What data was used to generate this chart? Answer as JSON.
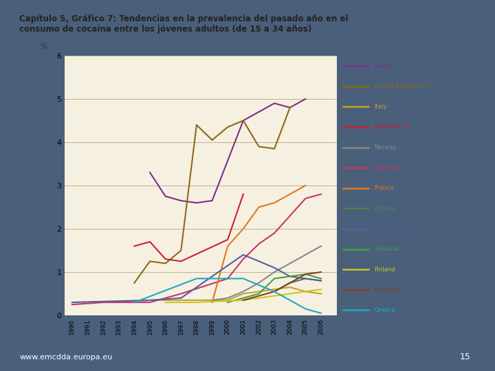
{
  "title": "Capítulo 5, Gráfico 7: Tendencias en la prevalencia del pasado año en el\nconsumo de cocaína entre los jóvenes adultos (de 15 a 34 años)",
  "bg_color": "#f5f0e0",
  "outer_bg": "#4a5f7a",
  "ylabel": "%",
  "ylim": [
    0,
    6
  ],
  "yticks": [
    0,
    1,
    2,
    3,
    4,
    5,
    6
  ],
  "footer_text": "www.emcdda.europa.eu",
  "footer_num": "15",
  "series": [
    {
      "label": "Spain",
      "color": "#7b2d8b",
      "data": {
        "1995": 3.3,
        "1996": 2.75,
        "1997": 2.65,
        "1998": 2.6,
        "1999": 2.65,
        "2001": 4.5,
        "2003": 4.9,
        "2004": 4.8,
        "2005": 5.0
      }
    },
    {
      "label": "United Kingdom (¹)",
      "color": "#8b6914",
      "data": {
        "1994": 0.75,
        "1995": 1.25,
        "1996": 1.2,
        "1997": 1.5,
        "1998": 4.4,
        "1999": 4.05,
        "2000": 4.35,
        "2001": 4.5,
        "2002": 3.9,
        "2003": 3.85,
        "2004": 4.8
      }
    },
    {
      "label": "Italy",
      "color": "#c8a030",
      "data": {
        "1992": 0.3,
        "1995": 0.35,
        "2000": 0.35,
        "2001": 0.5,
        "2002": 0.55,
        "2003": 0.6,
        "2004": 0.65,
        "2005": 0.55,
        "2006": 0.5
      }
    },
    {
      "label": "Denmark (²)",
      "color": "#cc2030",
      "data": {
        "1994": 1.6,
        "1995": 1.7,
        "1996": 1.3,
        "1997": 1.25,
        "2000": 1.75,
        "2001": 2.8
      }
    },
    {
      "label": "Norway",
      "color": "#888888",
      "data": {
        "1999": 0.35,
        "2000": 0.4,
        "2001": 0.55,
        "2002": 0.75,
        "2003": 1.0,
        "2004": 1.2,
        "2005": 1.4,
        "2006": 1.6
      }
    },
    {
      "label": "Germany",
      "color": "#cc3366",
      "data": {
        "1990": 0.25,
        "1992": 0.3,
        "1995": 0.3,
        "1997": 0.5,
        "2000": 0.85,
        "2001": 1.3,
        "2002": 1.65,
        "2003": 1.9,
        "2004": 2.3,
        "2005": 2.7,
        "2006": 2.8
      }
    },
    {
      "label": "France",
      "color": "#e07820",
      "data": {
        "1999": 0.3,
        "2000": 1.6,
        "2001": 2.0,
        "2002": 2.5,
        "2003": 2.6,
        "2005": 3.0
      }
    },
    {
      "label": "Estonia",
      "color": "#508050",
      "data": {
        "2003": 0.55,
        "2004": 0.75,
        "2005": 0.85,
        "2006": 0.8
      }
    },
    {
      "label": "Netherlands",
      "color": "#5060a0",
      "data": {
        "1990": 0.3,
        "1995": 0.35,
        "1997": 0.4,
        "2001": 1.4,
        "2002": 1.25,
        "2003": 1.1,
        "2004": 0.9,
        "2005": 0.85,
        "2006": 0.8
      }
    },
    {
      "label": "Slovakia",
      "color": "#40a040",
      "data": {
        "2000": 0.3,
        "2001": 0.4,
        "2002": 0.5,
        "2003": 0.85,
        "2004": 0.9,
        "2005": 0.95,
        "2006": 0.85
      }
    },
    {
      "label": "Finland",
      "color": "#c8c820",
      "data": {
        "1996": 0.3,
        "1998": 0.3,
        "2001": 0.35,
        "2002": 0.4,
        "2003": 0.45,
        "2004": 0.5,
        "2005": 0.55,
        "2006": 0.6
      }
    },
    {
      "label": "Hungary",
      "color": "#804020",
      "data": {
        "2001": 0.35,
        "2003": 0.55,
        "2004": 0.75,
        "2005": 0.95,
        "2006": 1.0
      }
    },
    {
      "label": "Greece",
      "color": "#20a8c0",
      "data": {
        "1994": 0.3,
        "1998": 0.85,
        "1999": 0.85,
        "2001": 0.85,
        "2002": 0.7,
        "2003": 0.55,
        "2004": 0.35,
        "2005": 0.15,
        "2006": 0.05
      }
    }
  ]
}
